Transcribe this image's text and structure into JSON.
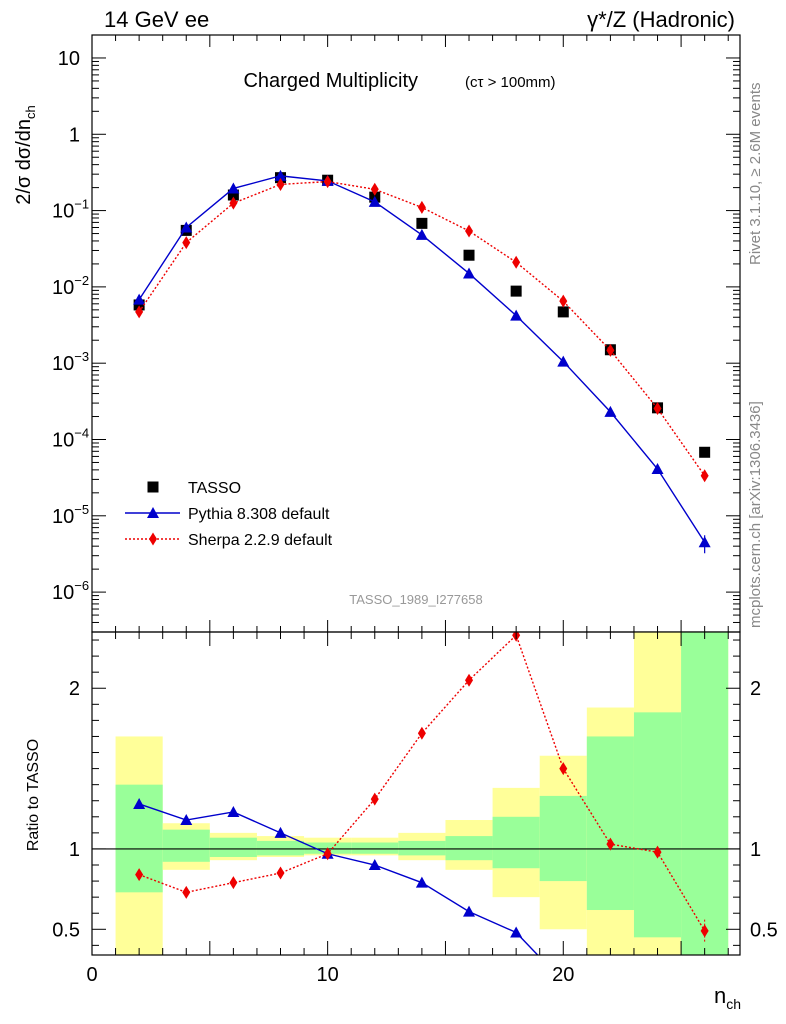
{
  "header": {
    "left": "14 GeV ee",
    "right": "γ*/Z (Hadronic)"
  },
  "side_labels": {
    "rivet": "Rivet 3.1.10, ≥ 2.6M events",
    "mcplots": "mcplots.cern.ch [arXiv:1306.3436]"
  },
  "colors": {
    "data": "#000000",
    "pythia": "#0000cc",
    "sherpa": "#ee0000",
    "band_inner": "#99ff99",
    "band_outer": "#ffff99"
  },
  "chart_data": [
    {
      "type": "scatter",
      "title": "Charged Multiplicity",
      "title_suffix": "(cτ > 100mm)",
      "watermark": "TASSO_1989_I277658",
      "ylabel": "2/σ dσ/dn",
      "ylabel_sub": "ch",
      "yscale": "log",
      "xlim": [
        0,
        27.5
      ],
      "ylim": [
        3e-07,
        20
      ],
      "ytick_labels": [
        {
          "value": 1e-06,
          "base": "10",
          "exp": "−6"
        },
        {
          "value": 1e-05,
          "base": "10",
          "exp": "−5"
        },
        {
          "value": 0.0001,
          "base": "10",
          "exp": "−4"
        },
        {
          "value": 0.001,
          "base": "10",
          "exp": "−3"
        },
        {
          "value": 0.01,
          "base": "10",
          "exp": "−2"
        },
        {
          "value": 0.1,
          "base": "10",
          "exp": "−1"
        },
        {
          "value": 1,
          "base": "1",
          "exp": ""
        },
        {
          "value": 10,
          "base": "10",
          "exp": ""
        }
      ],
      "legend_position": "bottom-left",
      "x": [
        2,
        4,
        6,
        8,
        10,
        12,
        14,
        16,
        18,
        20,
        22,
        24,
        26
      ],
      "series": [
        {
          "name": "TASSO",
          "marker": "square",
          "values": [
            0.0058,
            0.055,
            0.16,
            0.27,
            0.25,
            0.15,
            0.068,
            0.026,
            0.0088,
            0.0047,
            0.0015,
            0.00026,
            6.8e-05
          ]
        },
        {
          "name": "Pythia 8.308 default",
          "marker": "triangle",
          "line": "solid",
          "values": [
            0.0068,
            0.06,
            0.195,
            0.285,
            0.245,
            0.13,
            0.048,
            0.015,
            0.0042,
            0.00105,
            0.00023,
            4.1e-05,
            4.5e-06
          ]
        },
        {
          "name": "Sherpa 2.2.9 default",
          "marker": "diamond",
          "line": "dotted",
          "values": [
            0.0047,
            0.038,
            0.125,
            0.22,
            0.24,
            0.19,
            0.11,
            0.054,
            0.021,
            0.0065,
            0.00147,
            0.000255,
            3.35e-05
          ]
        }
      ]
    },
    {
      "type": "line",
      "ylabel": "Ratio to TASSO",
      "xlabel": "n",
      "xlabel_sub": "ch",
      "xlim": [
        0,
        27.5
      ],
      "ylim": [
        0.34,
        2.35
      ],
      "xticks": [
        0,
        10,
        20
      ],
      "yticks": [
        0.5,
        1,
        2
      ],
      "ytick_labels": [
        "0.5",
        "1",
        "2"
      ],
      "bands": {
        "edges": [
          1,
          3,
          5,
          7,
          9,
          11,
          13,
          15,
          17,
          19,
          21,
          23,
          25,
          27
        ],
        "inner_low": [
          0.73,
          0.92,
          0.95,
          0.96,
          0.97,
          0.97,
          0.96,
          0.93,
          0.88,
          0.8,
          0.62,
          0.45,
          0.3
        ],
        "inner_high": [
          1.4,
          1.12,
          1.07,
          1.05,
          1.04,
          1.04,
          1.05,
          1.08,
          1.2,
          1.33,
          1.7,
          1.85,
          2.6
        ],
        "outer_low": [
          0.2,
          0.87,
          0.93,
          0.95,
          0.96,
          0.96,
          0.93,
          0.87,
          0.7,
          0.5,
          0.3,
          0.2,
          0.1
        ],
        "outer_high": [
          1.7,
          1.16,
          1.1,
          1.08,
          1.07,
          1.07,
          1.1,
          1.18,
          1.38,
          1.58,
          1.88,
          2.6,
          2.6
        ]
      },
      "series": [
        {
          "name": "Pythia 8.308 default",
          "x": [
            2,
            4,
            6,
            8,
            10,
            12,
            14,
            16,
            18,
            19.5
          ],
          "values": [
            1.28,
            1.18,
            1.23,
            1.1,
            0.97,
            0.9,
            0.79,
            0.61,
            0.48,
            0.25
          ]
        },
        {
          "name": "Sherpa 2.2.9 default",
          "x": [
            2,
            4,
            6,
            8,
            10,
            12,
            14,
            16,
            18,
            20,
            22,
            24,
            26
          ],
          "values": [
            0.84,
            0.73,
            0.79,
            0.85,
            0.97,
            1.31,
            1.72,
            2.05,
            2.33,
            1.5,
            1.03,
            0.98,
            0.49
          ]
        }
      ]
    }
  ]
}
